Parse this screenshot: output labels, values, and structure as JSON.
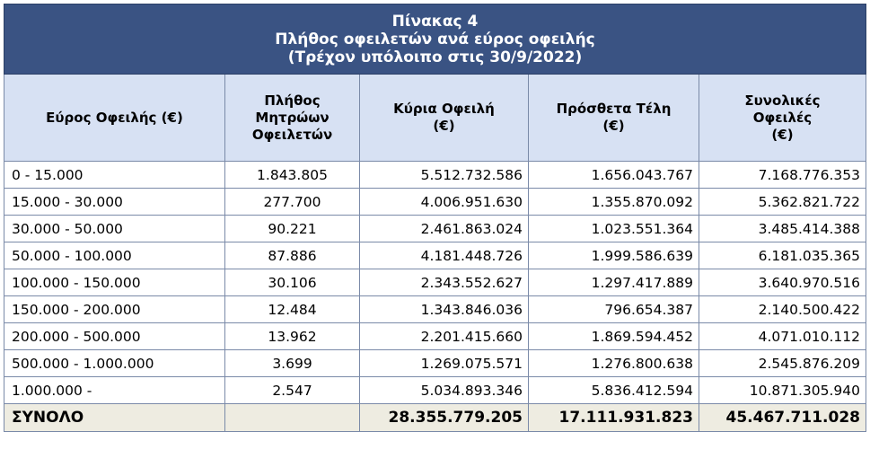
{
  "title": {
    "line1": "Πίνακας 4",
    "line2": "Πλήθος οφειλετών ανά εύρος οφειλής",
    "line3": "(Τρέχον υπόλοιπο στις 30/9/2022)"
  },
  "headers": {
    "range": "Εύρος Οφειλής (€)",
    "count": [
      "Πλήθος",
      "Μητρώων",
      "Οφειλετών"
    ],
    "principal": [
      "Κύρια Οφειλή",
      "(€)"
    ],
    "fees": [
      "Πρόσθετα Τέλη",
      "(€)"
    ],
    "total": [
      "Συνολικές",
      "Οφειλές",
      "(€)"
    ]
  },
  "rows": [
    {
      "range": "0 - 15.000",
      "count": "1.843.805",
      "principal": "5.512.732.586",
      "fees": "1.656.043.767",
      "total": "7.168.776.353"
    },
    {
      "range": "15.000 - 30.000",
      "count": "277.700",
      "principal": "4.006.951.630",
      "fees": "1.355.870.092",
      "total": "5.362.821.722"
    },
    {
      "range": "30.000 - 50.000",
      "count": "90.221",
      "principal": "2.461.863.024",
      "fees": "1.023.551.364",
      "total": "3.485.414.388"
    },
    {
      "range": "50.000 - 100.000",
      "count": "87.886",
      "principal": "4.181.448.726",
      "fees": "1.999.586.639",
      "total": "6.181.035.365"
    },
    {
      "range": "100.000 - 150.000",
      "count": "30.106",
      "principal": "2.343.552.627",
      "fees": "1.297.417.889",
      "total": "3.640.970.516"
    },
    {
      "range": "150.000 - 200.000",
      "count": "12.484",
      "principal": "1.343.846.036",
      "fees": "796.654.387",
      "total": "2.140.500.422"
    },
    {
      "range": "200.000 - 500.000",
      "count": "13.962",
      "principal": "2.201.415.660",
      "fees": "1.869.594.452",
      "total": "4.071.010.112"
    },
    {
      "range": "500.000 - 1.000.000",
      "count": "3.699",
      "principal": "1.269.075.571",
      "fees": "1.276.800.638",
      "total": "2.545.876.209"
    },
    {
      "range": "1.000.000 -",
      "count": "2.547",
      "principal": "5.034.893.346",
      "fees": "5.836.412.594",
      "total": "10.871.305.940"
    }
  ],
  "totals": {
    "label": "ΣΥΝΟΛΟ",
    "count": "",
    "principal": "28.355.779.205",
    "fees": "17.111.931.823",
    "total": "45.467.711.028"
  },
  "colors": {
    "title_bg": "#3a5383",
    "header_bg": "#d7e1f3",
    "total_bg": "#eeece1",
    "border": "#7a8aa8"
  }
}
